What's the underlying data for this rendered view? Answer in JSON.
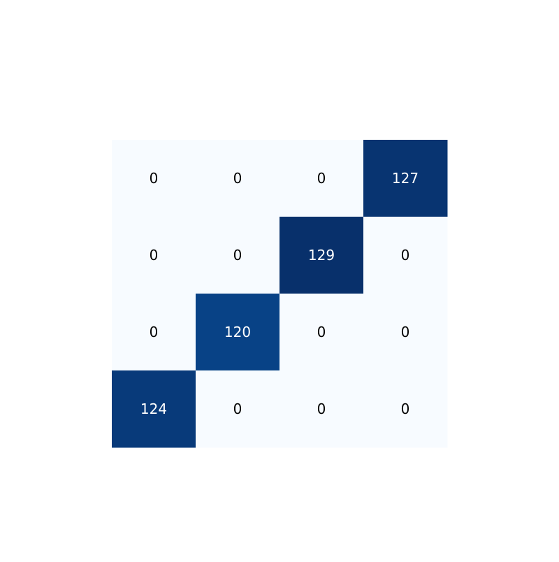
{
  "chart_data": {
    "type": "heatmap",
    "title": "",
    "xlabel": "",
    "ylabel": "",
    "rows": 4,
    "cols": 4,
    "values": [
      [
        0,
        0,
        0,
        127
      ],
      [
        0,
        0,
        129,
        0
      ],
      [
        0,
        120,
        0,
        0
      ],
      [
        124,
        0,
        0,
        0
      ]
    ],
    "value_range": [
      0,
      129
    ],
    "colorscale": "Blues",
    "colors": {
      "low": "#f7fbff",
      "high": "#08306b",
      "text_dark": "#000000",
      "text_light": "#ffffff"
    },
    "cell_labels_shown": true,
    "colorbar": false,
    "axes_visible": false,
    "grid": false
  }
}
